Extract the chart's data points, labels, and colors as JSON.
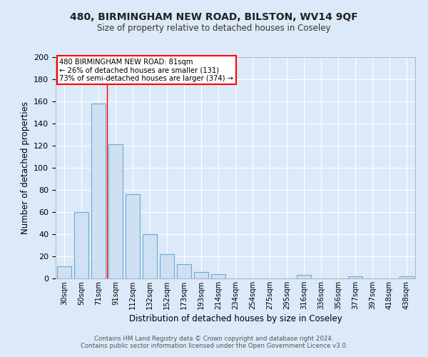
{
  "title1": "480, BIRMINGHAM NEW ROAD, BILSTON, WV14 9QF",
  "title2": "Size of property relative to detached houses in Coseley",
  "xlabel": "Distribution of detached houses by size in Coseley",
  "ylabel": "Number of detached properties",
  "categories": [
    "30sqm",
    "50sqm",
    "71sqm",
    "91sqm",
    "112sqm",
    "132sqm",
    "152sqm",
    "173sqm",
    "193sqm",
    "214sqm",
    "234sqm",
    "254sqm",
    "275sqm",
    "295sqm",
    "316sqm",
    "336sqm",
    "356sqm",
    "377sqm",
    "397sqm",
    "418sqm",
    "438sqm"
  ],
  "values": [
    11,
    60,
    158,
    121,
    76,
    40,
    22,
    13,
    6,
    4,
    0,
    0,
    0,
    0,
    3,
    0,
    0,
    2,
    0,
    0,
    2
  ],
  "bar_color": "#cfe0f3",
  "bar_edge_color": "#6aaad4",
  "red_line_index": 2,
  "annotation_lines": [
    "480 BIRMINGHAM NEW ROAD: 81sqm",
    "← 26% of detached houses are smaller (131)",
    "73% of semi-detached houses are larger (374) →"
  ],
  "annotation_box_color": "white",
  "annotation_box_edge_color": "red",
  "ylim": [
    0,
    200
  ],
  "yticks": [
    0,
    20,
    40,
    60,
    80,
    100,
    120,
    140,
    160,
    180,
    200
  ],
  "bg_color": "#dce9f8",
  "footer_line1": "Contains HM Land Registry data © Crown copyright and database right 2024.",
  "footer_line2": "Contains public sector information licensed under the Open Government Licence v3.0."
}
